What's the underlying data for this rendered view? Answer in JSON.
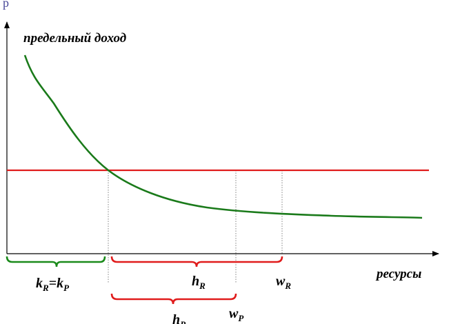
{
  "diagram": {
    "y_axis_label": "предельный доход",
    "x_axis_label": "ресурсы",
    "corner_glyph": "р",
    "kR_kP": {
      "k": "k",
      "sub1": "R",
      "eq": "=",
      "k2": "k",
      "sub2": "P"
    },
    "hR": {
      "main": "h",
      "sub": "R"
    },
    "hP": {
      "main": "h",
      "sub": "P"
    },
    "wR": {
      "main": "w",
      "sub": "R"
    },
    "wP": {
      "main": "w",
      "sub": "P"
    },
    "colors": {
      "axes": "#000000",
      "curve": "#1a7a1a",
      "horizontal_line": "#e01b1b",
      "dotted": "#808080",
      "green_brace": "#1a8a1a",
      "red_brace": "#e01b1b",
      "corner_glyph": "#4a4a9a"
    }
  }
}
